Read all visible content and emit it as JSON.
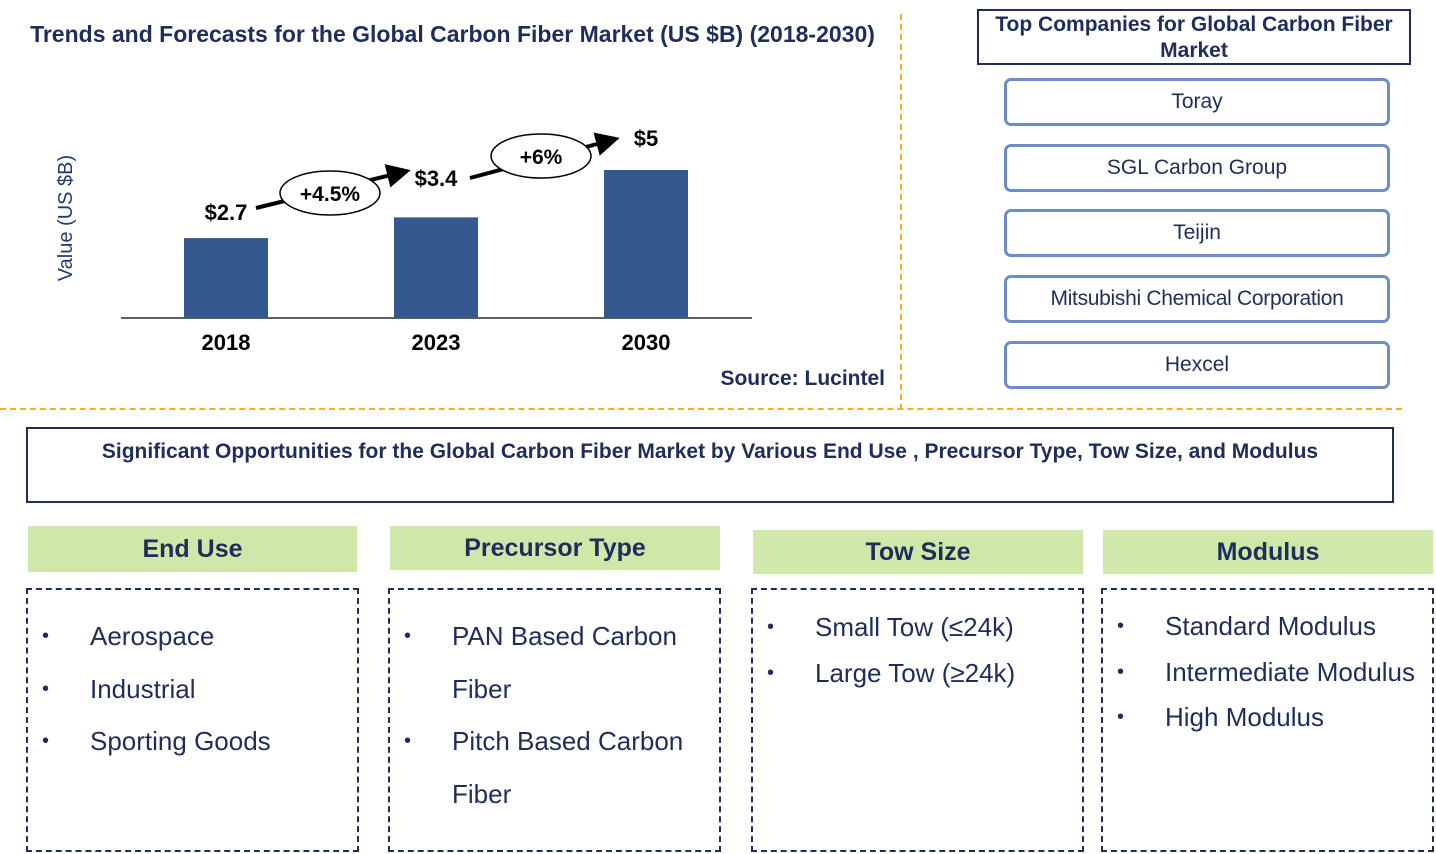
{
  "chart_data": {
    "type": "bar",
    "title": "Trends and Forecasts for the Global Carbon Fiber Market (US $B) (2018-2030)",
    "ylabel": "Value (US $B)",
    "categories": [
      "2018",
      "2023",
      "2030"
    ],
    "values": [
      2.7,
      3.4,
      5
    ],
    "value_labels": [
      "$2.7",
      "$3.4",
      "$5"
    ],
    "growth_labels": [
      "+4.5%",
      "+6%"
    ],
    "bar_color": "#34598f",
    "ylim": [
      0,
      6
    ],
    "grid": false,
    "source": "Source: Lucintel"
  },
  "companies": {
    "title": "Top Companies for Global Carbon Fiber Market",
    "items": [
      "Toray",
      "SGL Carbon Group",
      "Teijin",
      "Mitsubishi Chemical Corporation",
      "Hexcel"
    ]
  },
  "opportunities": {
    "title": "Significant Opportunities for the Global Carbon Fiber Market by Various End Use , Precursor Type, Tow Size, and Modulus",
    "segments": [
      {
        "heading": "End Use",
        "items": [
          "Aerospace",
          "Industrial",
          "Sporting Goods"
        ]
      },
      {
        "heading": "Precursor Type",
        "items": [
          "PAN Based Carbon Fiber",
          "Pitch Based Carbon Fiber"
        ]
      },
      {
        "heading": "Tow Size",
        "items": [
          "Small Tow (≤24k)",
          "Large Tow (≥24k)"
        ]
      },
      {
        "heading": "Modulus",
        "items": [
          "Standard Modulus",
          "Intermediate Modulus",
          "High Modulus"
        ]
      }
    ]
  },
  "colors": {
    "title": "#1f2d5a",
    "accent_dashed": "#f1b41c",
    "segment_header_bg": "#cfe8a9",
    "company_border": "#6e8cc6"
  }
}
